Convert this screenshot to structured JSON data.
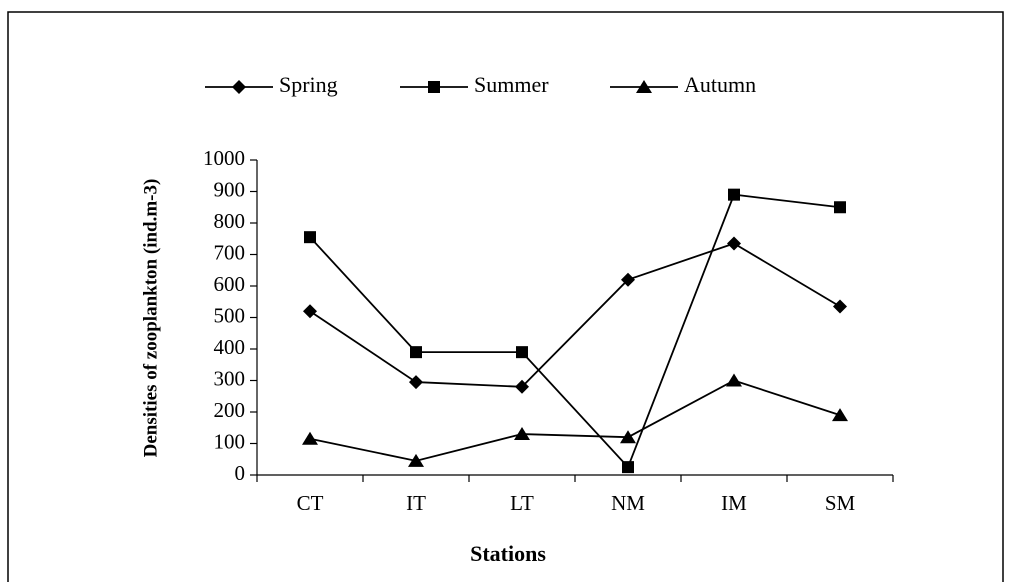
{
  "chart_data": {
    "type": "line",
    "x_label": "Stations",
    "y_label": "Densities of zooplankton (ind.m-3)",
    "categories": [
      "CT",
      "IT",
      "LT",
      "NM",
      "IM",
      "SM"
    ],
    "series": [
      {
        "name": "Spring",
        "color": "#000000",
        "marker": "diamond",
        "values": [
          520,
          295,
          280,
          620,
          735,
          535
        ]
      },
      {
        "name": "Summer",
        "color": "#000000",
        "marker": "square",
        "values": [
          755,
          390,
          390,
          25,
          890,
          850
        ]
      },
      {
        "name": "Autumn",
        "color": "#000000",
        "marker": "triangle",
        "values": [
          115,
          45,
          130,
          120,
          300,
          190
        ]
      }
    ],
    "ylim": [
      0,
      1000
    ],
    "yticks": [
      0,
      100,
      200,
      300,
      400,
      500,
      600,
      700,
      800,
      900,
      1000
    ],
    "legend": "top"
  }
}
